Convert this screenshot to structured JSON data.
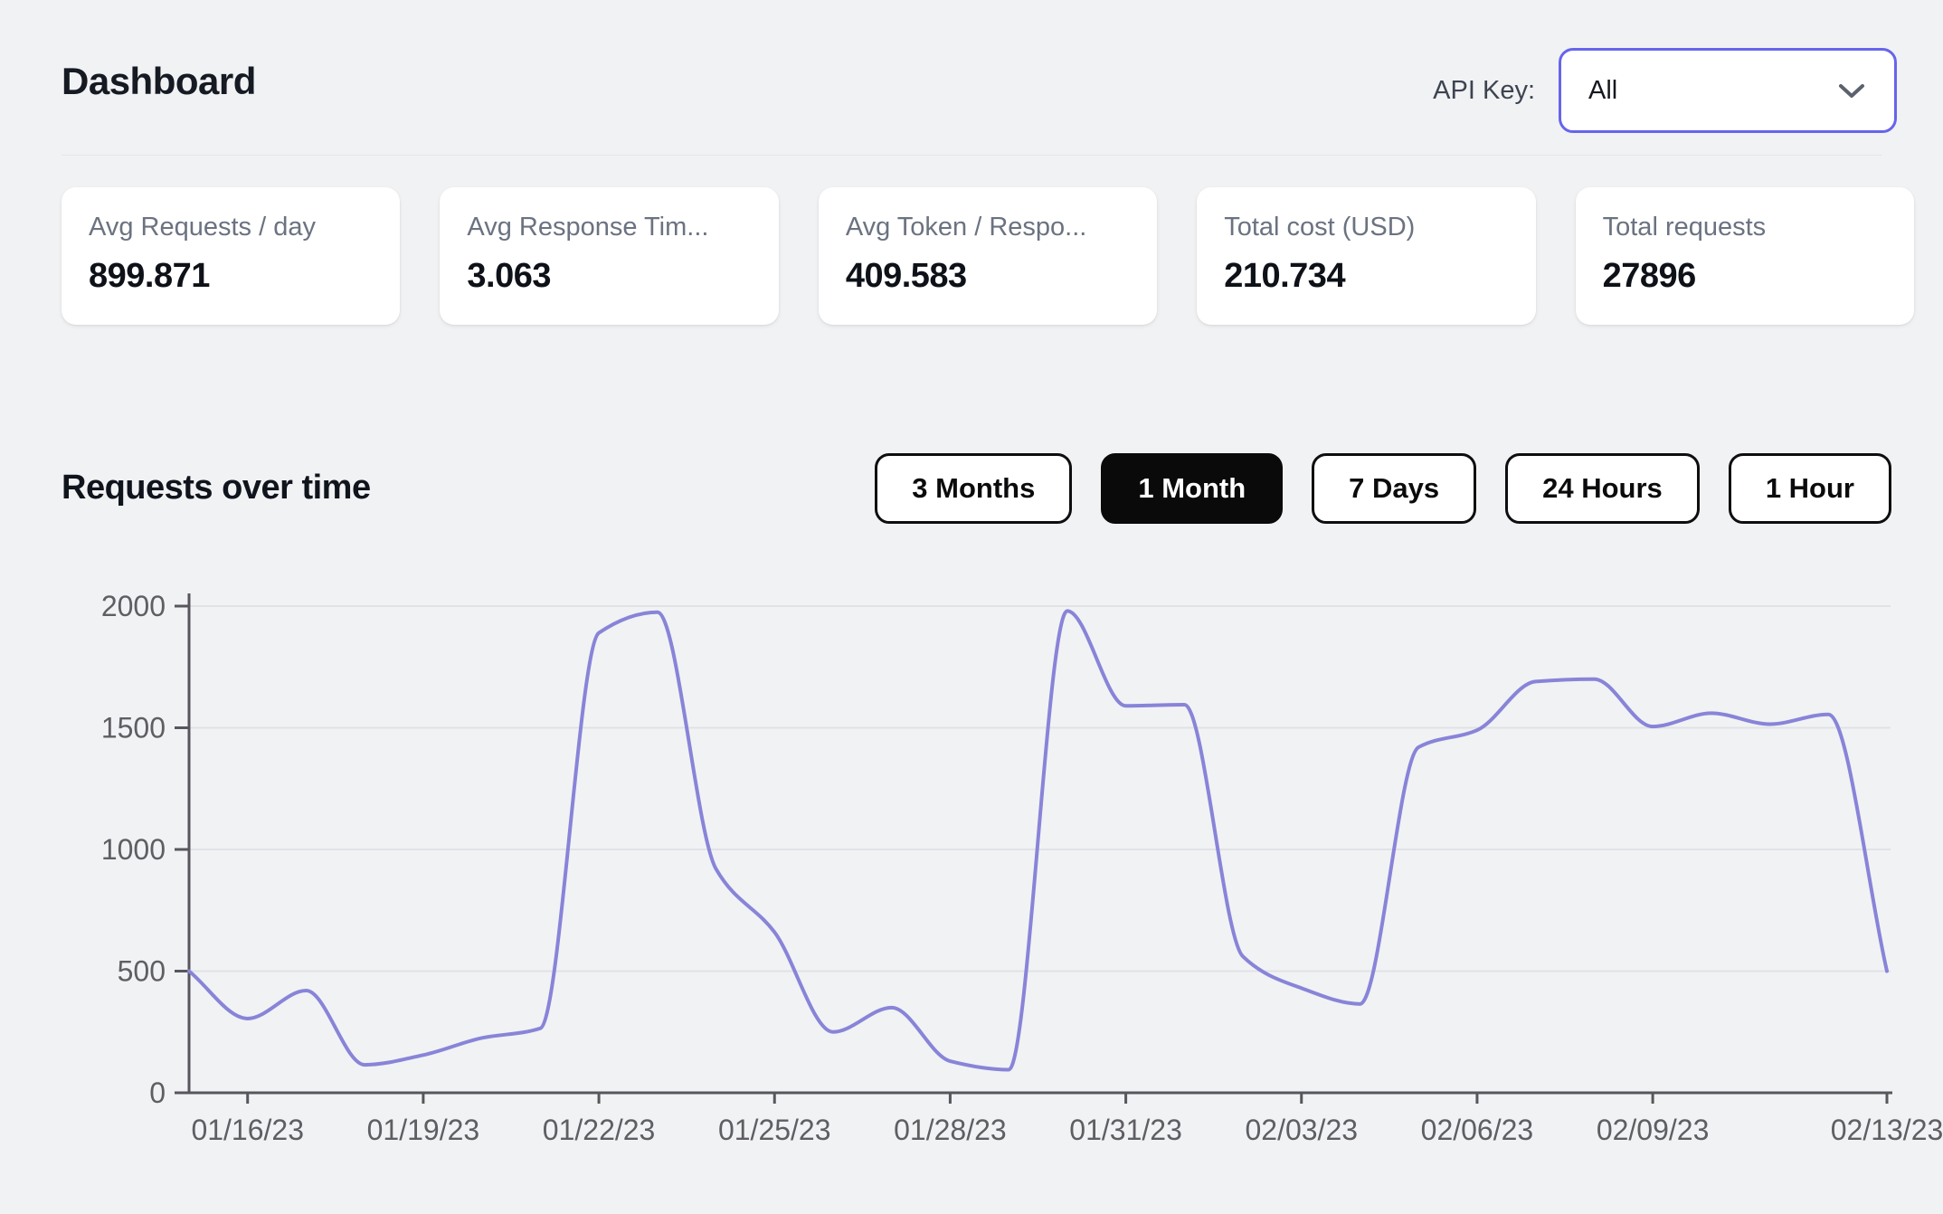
{
  "header": {
    "title": "Dashboard",
    "api_key_label": "API Key:",
    "api_key_value": "All"
  },
  "stats": [
    {
      "label": "Avg Requests / day",
      "value": "899.871"
    },
    {
      "label": "Avg Response Tim...",
      "value": "3.063"
    },
    {
      "label": "Avg Token / Respo...",
      "value": "409.583"
    },
    {
      "label": "Total cost (USD)",
      "value": "210.734"
    },
    {
      "label": "Total requests",
      "value": "27896"
    }
  ],
  "section": {
    "title": "Requests over time",
    "range_buttons": [
      {
        "label": "3 Months",
        "selected": false
      },
      {
        "label": "1 Month",
        "selected": true
      },
      {
        "label": "7 Days",
        "selected": false
      },
      {
        "label": "24 Hours",
        "selected": false
      },
      {
        "label": "1 Hour",
        "selected": false
      }
    ]
  },
  "colors": {
    "accent": "#6764ec",
    "chart_line": "#8884d8",
    "selected_button_bg": "#0a0a0b",
    "page_background": "#f1f2f4",
    "axis_line": "#56565c",
    "gridline": "#e1e2e6"
  },
  "chart_data": {
    "type": "line",
    "title": "Requests over time",
    "xlabel": "",
    "ylabel": "",
    "ylim": [
      0,
      2000
    ],
    "y_ticks": [
      0,
      500,
      1000,
      1500,
      2000
    ],
    "grid": "horizontal",
    "legend": false,
    "smoothing": "monotone",
    "line_color": "#8884d8",
    "x": [
      "01/15/23",
      "01/16/23",
      "01/17/23",
      "01/18/23",
      "01/19/23",
      "01/20/23",
      "01/21/23",
      "01/22/23",
      "01/23/23",
      "01/24/23",
      "01/25/23",
      "01/26/23",
      "01/27/23",
      "01/28/23",
      "01/29/23",
      "01/30/23",
      "01/31/23",
      "02/01/23",
      "02/02/23",
      "02/03/23",
      "02/04/23",
      "02/05/23",
      "02/06/23",
      "02/07/23",
      "02/08/23",
      "02/09/23",
      "02/10/23",
      "02/11/23",
      "02/12/23",
      "02/13/23"
    ],
    "series": [
      {
        "name": "requests",
        "values": [
          500,
          305,
          420,
          115,
          155,
          225,
          265,
          1890,
          1975,
          920,
          660,
          250,
          350,
          130,
          95,
          1980,
          1590,
          1595,
          560,
          430,
          365,
          1420,
          1490,
          1690,
          1700,
          1505,
          1560,
          1515,
          1555,
          500
        ]
      }
    ],
    "x_tick_labels": [
      "01/16/23",
      "01/19/23",
      "01/22/23",
      "01/25/23",
      "01/28/23",
      "01/31/23",
      "02/03/23",
      "02/06/23",
      "02/09/23",
      "02/13/23"
    ],
    "x_tick_indices": [
      1,
      4,
      7,
      10,
      13,
      16,
      19,
      22,
      25,
      29
    ]
  }
}
